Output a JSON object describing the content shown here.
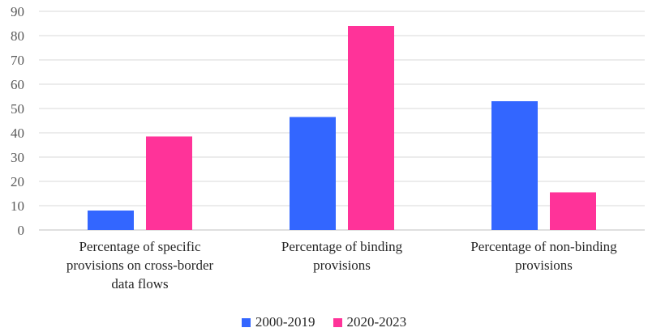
{
  "chart_data": {
    "type": "bar",
    "categories": [
      [
        "Percentage of specific",
        "provisions on cross-border",
        "data flows"
      ],
      [
        "Percentage of binding",
        "provisions"
      ],
      [
        "Percentage of non-binding",
        "provisions"
      ]
    ],
    "series": [
      {
        "name": "2000-2019",
        "color": "#3366FF",
        "values": [
          8,
          46.5,
          53
        ]
      },
      {
        "name": "2020-2023",
        "color": "#FF3399",
        "values": [
          38.5,
          84,
          15.5
        ]
      }
    ],
    "yticks": [
      0,
      10,
      20,
      30,
      40,
      50,
      60,
      70,
      80,
      90
    ],
    "ylim": [
      0,
      90
    ],
    "title": "",
    "xlabel": "",
    "ylabel": "",
    "grid": true,
    "legend_position": "bottom"
  },
  "legend": {
    "items": [
      {
        "label": "2000-2019",
        "color": "#3366FF"
      },
      {
        "label": "2020-2023",
        "color": "#FF3399"
      }
    ]
  }
}
